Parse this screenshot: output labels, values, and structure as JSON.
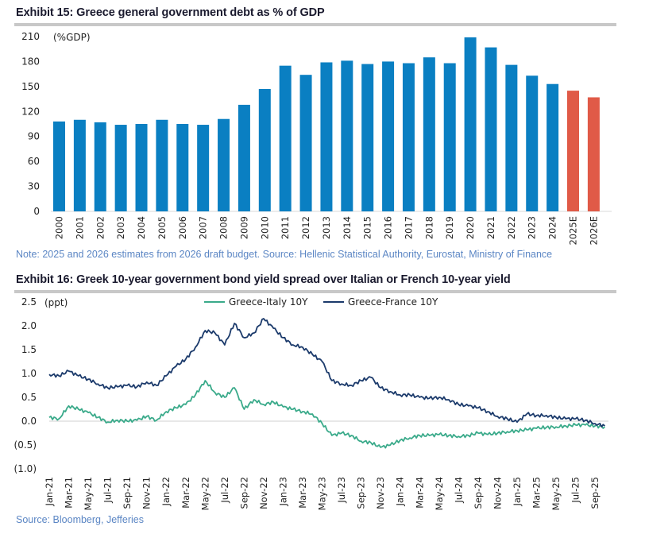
{
  "exhibit15": {
    "title": "Exhibit 15: Greece general government debt as % of GDP",
    "note": "Note: 2025 and 2026 estimates from 2026 draft budget. Source: Hellenic Statistical Authority, Eurostat, Ministry of Finance"
  },
  "exhibit16": {
    "title": "Exhibit 16: Greek 10-year government bond yield spread over Italian or French 10-year yield",
    "note": "Source: Bloomberg, Jefferies"
  },
  "colors": {
    "actual_bar": "#0a7fc2",
    "estimate_bar": "#e05a47",
    "greece_italy": "#3aaa8a",
    "greece_france": "#1b3a6b",
    "zero_line": "#d0d0d0"
  },
  "chart_data": [
    {
      "type": "bar",
      "title": "Exhibit 15: Greece general government debt as % of GDP",
      "ylabel": "(%GDP)",
      "xlabel": "",
      "ylim": [
        0,
        210
      ],
      "yticks": [
        0,
        30,
        60,
        90,
        120,
        150,
        180,
        210
      ],
      "grid": false,
      "categories": [
        "2000",
        "2001",
        "2002",
        "2003",
        "2004",
        "2005",
        "2006",
        "2007",
        "2008",
        "2009",
        "2010",
        "2011",
        "2012",
        "2013",
        "2014",
        "2015",
        "2016",
        "2017",
        "2018",
        "2019",
        "2020",
        "2021",
        "2022",
        "2023",
        "2024",
        "2025E",
        "2026E"
      ],
      "values": [
        108,
        110,
        107,
        104,
        105,
        110,
        105,
        104,
        111,
        128,
        147,
        175,
        164,
        179,
        181,
        177,
        180,
        178,
        185,
        178,
        209,
        197,
        176,
        163,
        153,
        145,
        137
      ],
      "estimate": [
        false,
        false,
        false,
        false,
        false,
        false,
        false,
        false,
        false,
        false,
        false,
        false,
        false,
        false,
        false,
        false,
        false,
        false,
        false,
        false,
        false,
        false,
        false,
        false,
        false,
        true,
        true
      ]
    },
    {
      "type": "line",
      "title": "Exhibit 16: Greek 10-year government bond yield spread over Italian or French 10-year yield",
      "ylabel": "(ppt)",
      "xlabel": "",
      "ylim": [
        -1.0,
        2.5
      ],
      "yticks": [
        2.5,
        2.0,
        1.5,
        1.0,
        0.5,
        0.0,
        -0.5,
        -1.0
      ],
      "ytick_labels": [
        "2.5",
        "2.0",
        "1.5",
        "1.0",
        "0.5",
        "0.0",
        "(0.5)",
        "(1.0)"
      ],
      "grid": false,
      "legend": "top-center",
      "xtick_labels": [
        "Jan-21",
        "Mar-21",
        "May-21",
        "Jul-21",
        "Sep-21",
        "Nov-21",
        "Jan-22",
        "Mar-22",
        "May-22",
        "Jul-22",
        "Sep-22",
        "Nov-22",
        "Jan-23",
        "Mar-23",
        "May-23",
        "Jul-23",
        "Sep-23",
        "Nov-23",
        "Jan-24",
        "Mar-24",
        "May-24",
        "Jul-24",
        "Sep-24",
        "Nov-24",
        "Jan-25",
        "Mar-25",
        "May-25",
        "Jul-25",
        "Sep-25"
      ],
      "x": [
        "Jan-21",
        "Feb-21",
        "Mar-21",
        "Apr-21",
        "May-21",
        "Jun-21",
        "Jul-21",
        "Aug-21",
        "Sep-21",
        "Oct-21",
        "Nov-21",
        "Dec-21",
        "Jan-22",
        "Feb-22",
        "Mar-22",
        "Apr-22",
        "May-22",
        "Jun-22",
        "Jul-22",
        "Aug-22",
        "Sep-22",
        "Oct-22",
        "Nov-22",
        "Dec-22",
        "Jan-23",
        "Feb-23",
        "Mar-23",
        "Apr-23",
        "May-23",
        "Jun-23",
        "Jul-23",
        "Aug-23",
        "Sep-23",
        "Oct-23",
        "Nov-23",
        "Dec-23",
        "Jan-24",
        "Feb-24",
        "Mar-24",
        "Apr-24",
        "May-24",
        "Jun-24",
        "Jul-24",
        "Aug-24",
        "Sep-24",
        "Oct-24",
        "Nov-24",
        "Dec-24",
        "Jan-25",
        "Feb-25",
        "Mar-25",
        "Apr-25",
        "May-25",
        "Jun-25",
        "Jul-25",
        "Aug-25",
        "Sep-25",
        "Oct-25"
      ],
      "series": [
        {
          "name": "Greece-Italy 10Y",
          "values": [
            0.08,
            0.05,
            0.32,
            0.25,
            0.18,
            0.08,
            -0.02,
            0.02,
            0.0,
            0.02,
            0.1,
            0.02,
            0.2,
            0.28,
            0.35,
            0.55,
            0.85,
            0.6,
            0.5,
            0.7,
            0.25,
            0.45,
            0.35,
            0.4,
            0.3,
            0.25,
            0.2,
            0.15,
            -0.05,
            -0.3,
            -0.25,
            -0.3,
            -0.42,
            -0.45,
            -0.55,
            -0.5,
            -0.4,
            -0.35,
            -0.3,
            -0.3,
            -0.28,
            -0.3,
            -0.32,
            -0.3,
            -0.25,
            -0.28,
            -0.25,
            -0.22,
            -0.2,
            -0.18,
            -0.15,
            -0.13,
            -0.12,
            -0.1,
            -0.08,
            -0.08,
            -0.1,
            -0.12
          ]
        },
        {
          "name": "Greece-France 10Y",
          "values": [
            0.98,
            0.95,
            1.05,
            0.95,
            0.88,
            0.78,
            0.7,
            0.72,
            0.75,
            0.72,
            0.82,
            0.75,
            0.95,
            1.15,
            1.3,
            1.55,
            1.9,
            1.85,
            1.6,
            2.05,
            1.75,
            1.85,
            2.15,
            1.95,
            1.75,
            1.6,
            1.55,
            1.4,
            1.25,
            0.85,
            0.78,
            0.75,
            0.85,
            0.92,
            0.7,
            0.62,
            0.55,
            0.55,
            0.5,
            0.48,
            0.5,
            0.45,
            0.35,
            0.32,
            0.28,
            0.2,
            0.1,
            0.05,
            -0.02,
            0.15,
            0.12,
            0.12,
            0.08,
            0.05,
            0.05,
            0.02,
            -0.05,
            -0.1
          ]
        }
      ]
    }
  ]
}
